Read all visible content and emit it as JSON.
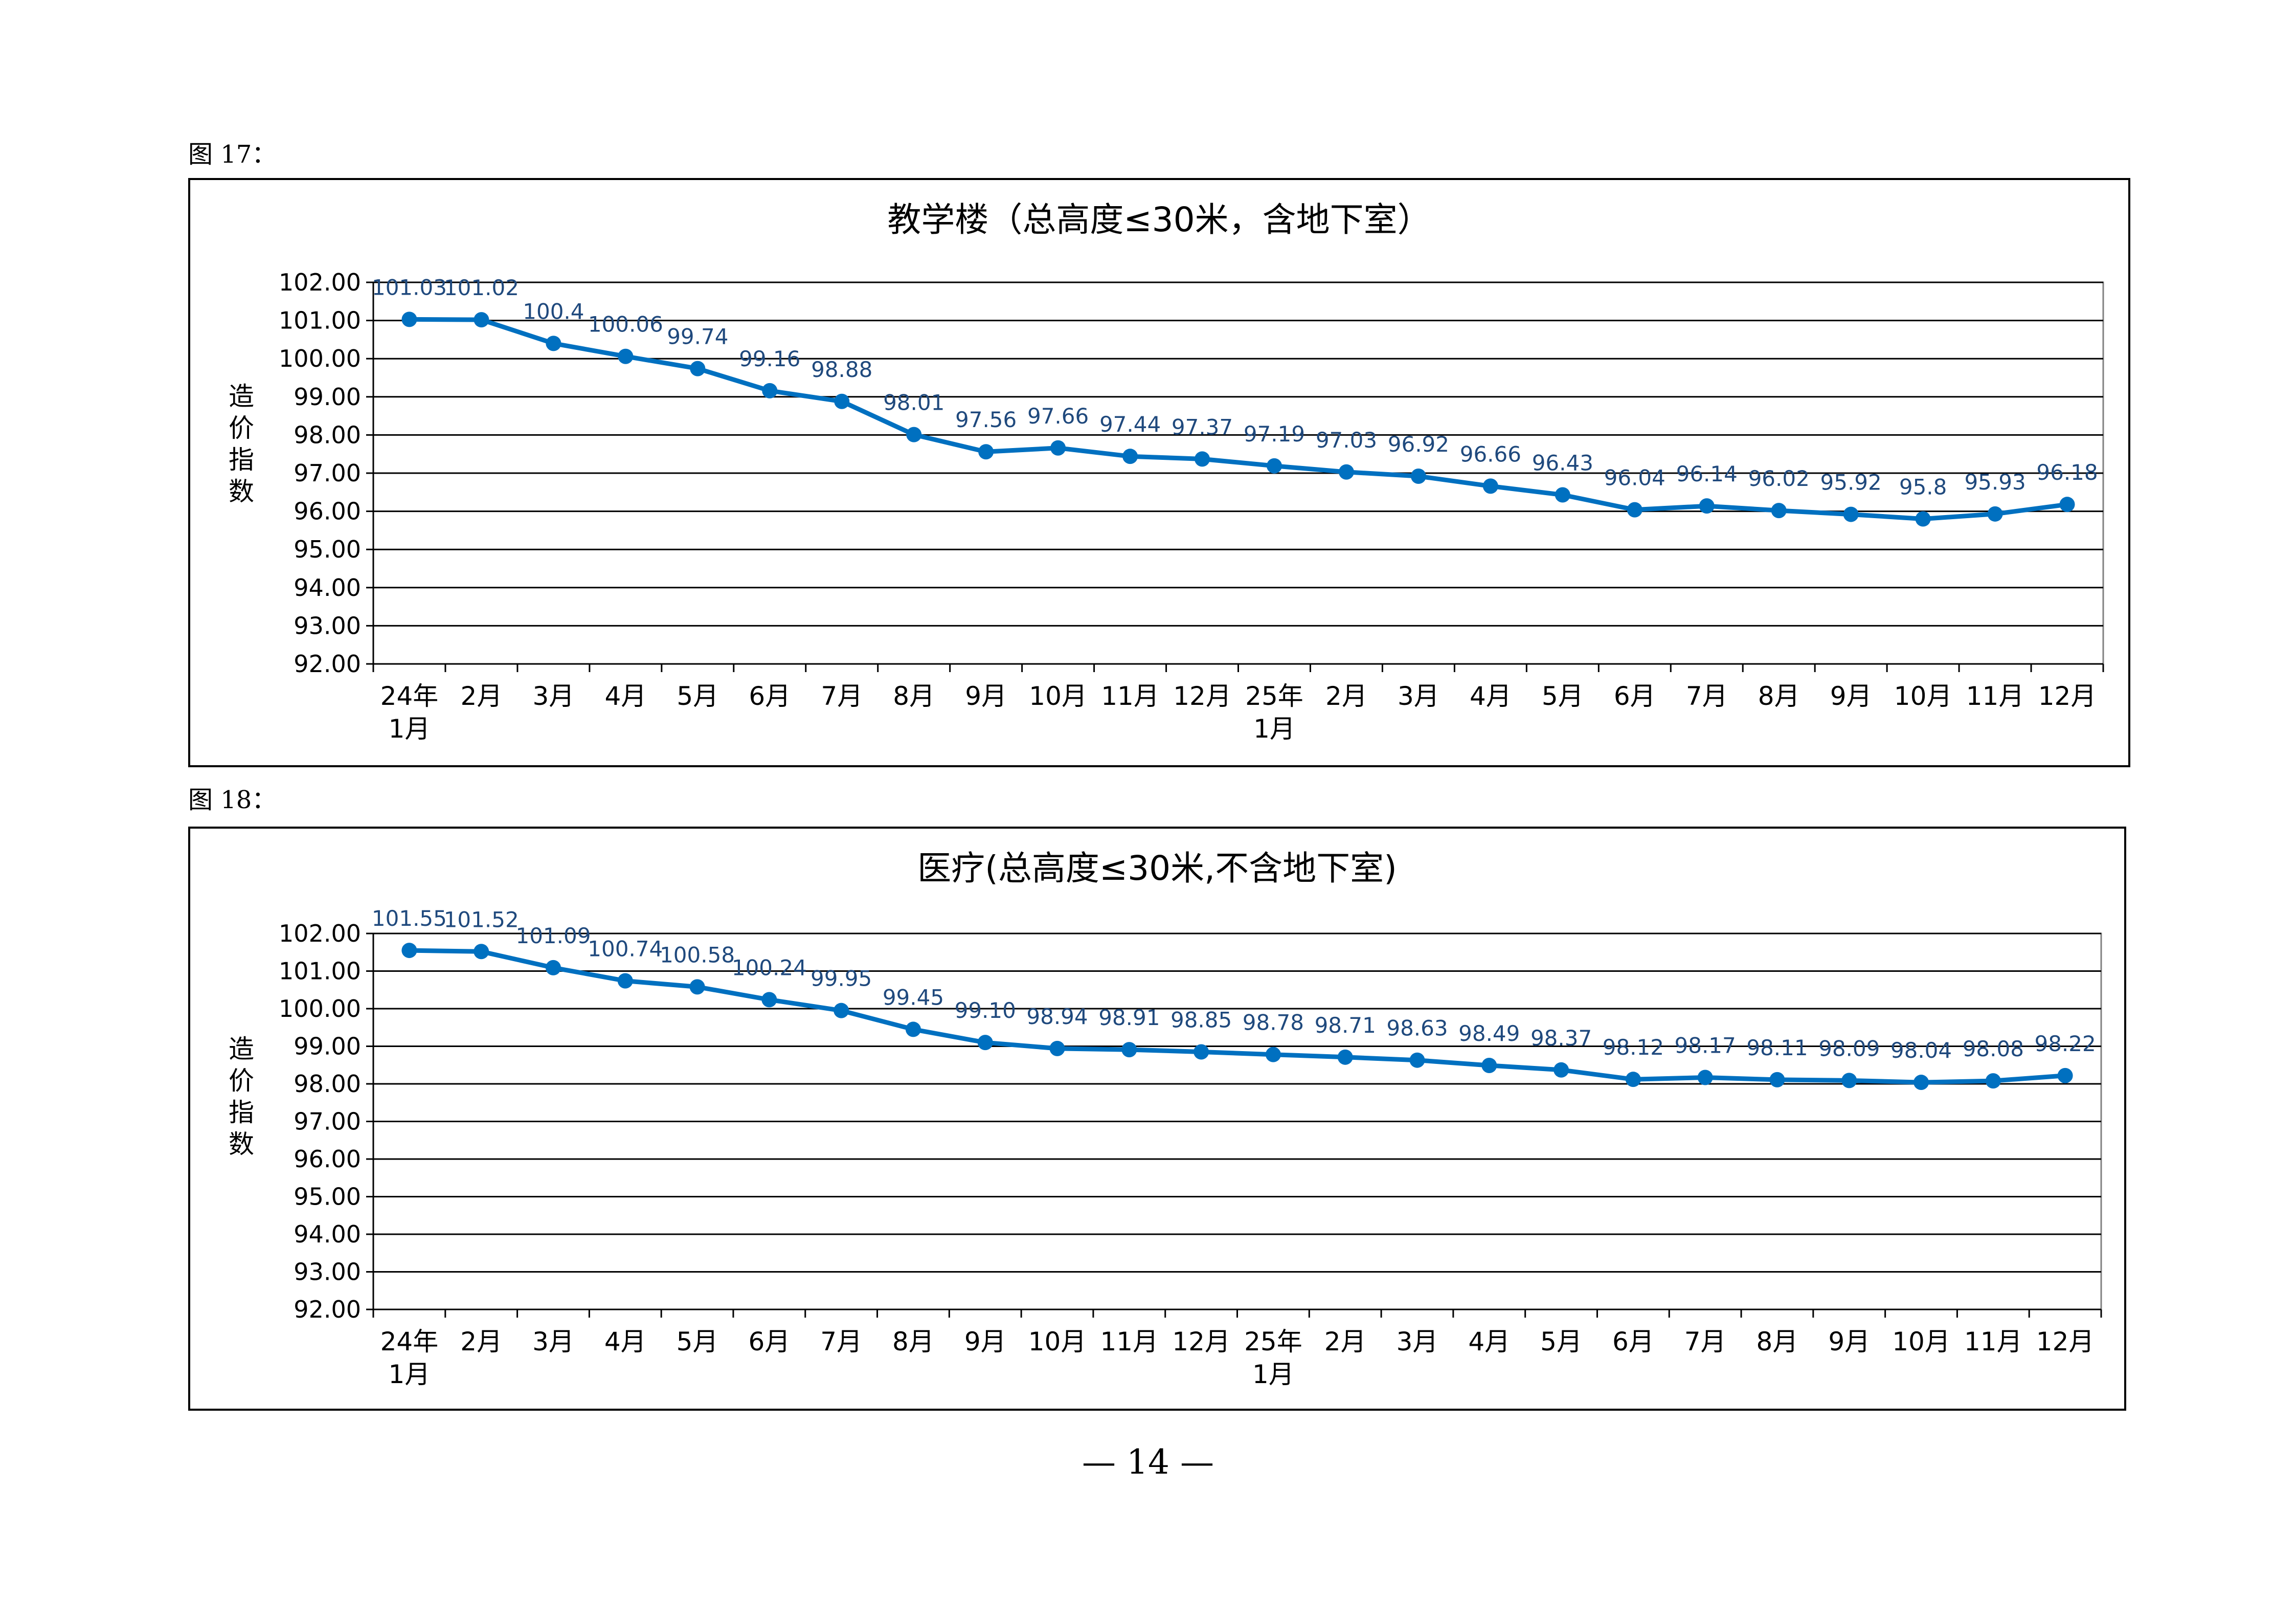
{
  "page": {
    "page_number": "— 14 —"
  },
  "figures": [
    {
      "label": "图 17："
    },
    {
      "label": "图 18："
    }
  ],
  "colors": {
    "line": "#0070C0",
    "data_label": "#1F497D",
    "grid": "#000000"
  },
  "chart_data": [
    {
      "type": "line",
      "title": "教学楼（总高度≤30米，含地下室）",
      "ylabel": "造价指数",
      "xlabel": "",
      "ylim": [
        92,
        102
      ],
      "yticks": [
        "102.00",
        "101.00",
        "100.00",
        "99.00",
        "98.00",
        "97.00",
        "96.00",
        "95.00",
        "94.00",
        "93.00",
        "92.00"
      ],
      "categories": [
        "24年1月",
        "2月",
        "3月",
        "4月",
        "5月",
        "6月",
        "7月",
        "8月",
        "9月",
        "10月",
        "11月",
        "12月",
        "25年1月",
        "2月",
        "3月",
        "4月",
        "5月",
        "6月",
        "7月",
        "8月",
        "9月",
        "10月",
        "11月",
        "12月"
      ],
      "category_lines": [
        [
          "24年",
          "1月"
        ],
        [
          "2月"
        ],
        [
          "3月"
        ],
        [
          "4月"
        ],
        [
          "5月"
        ],
        [
          "6月"
        ],
        [
          "7月"
        ],
        [
          "8月"
        ],
        [
          "9月"
        ],
        [
          "10月"
        ],
        [
          "11月"
        ],
        [
          "12月"
        ],
        [
          "25年",
          "1月"
        ],
        [
          "2月"
        ],
        [
          "3月"
        ],
        [
          "4月"
        ],
        [
          "5月"
        ],
        [
          "6月"
        ],
        [
          "7月"
        ],
        [
          "8月"
        ],
        [
          "9月"
        ],
        [
          "10月"
        ],
        [
          "11月"
        ],
        [
          "12月"
        ]
      ],
      "values": [
        101.03,
        101.02,
        100.4,
        100.06,
        99.74,
        99.16,
        98.88,
        98.01,
        97.56,
        97.66,
        97.44,
        97.37,
        97.19,
        97.03,
        96.92,
        96.66,
        96.43,
        96.04,
        96.14,
        96.02,
        95.92,
        95.8,
        95.93,
        96.18
      ],
      "data_labels": [
        "101.03",
        "101.02",
        "100.4",
        "100.06",
        "99.74",
        "99.16",
        "98.88",
        "98.01",
        "97.56",
        "97.66",
        "97.44",
        "97.37",
        "97.19",
        "97.03",
        "96.92",
        "96.66",
        "96.43",
        "96.04",
        "96.14",
        "96.02",
        "95.92",
        "95.8",
        "95.93",
        "96.18"
      ],
      "grid": true
    },
    {
      "type": "line",
      "title": "医疗(总高度≤30米,不含地下室)",
      "ylabel": "造价指数",
      "xlabel": "",
      "ylim": [
        92,
        102
      ],
      "yticks": [
        "102.00",
        "101.00",
        "100.00",
        "99.00",
        "98.00",
        "97.00",
        "96.00",
        "95.00",
        "94.00",
        "93.00",
        "92.00"
      ],
      "categories": [
        "24年1月",
        "2月",
        "3月",
        "4月",
        "5月",
        "6月",
        "7月",
        "8月",
        "9月",
        "10月",
        "11月",
        "12月",
        "25年1月",
        "2月",
        "3月",
        "4月",
        "5月",
        "6月",
        "7月",
        "8月",
        "9月",
        "10月",
        "11月",
        "12月"
      ],
      "category_lines": [
        [
          "24年",
          "1月"
        ],
        [
          "2月"
        ],
        [
          "3月"
        ],
        [
          "4月"
        ],
        [
          "5月"
        ],
        [
          "6月"
        ],
        [
          "7月"
        ],
        [
          "8月"
        ],
        [
          "9月"
        ],
        [
          "10月"
        ],
        [
          "11月"
        ],
        [
          "12月"
        ],
        [
          "25年",
          "1月"
        ],
        [
          "2月"
        ],
        [
          "3月"
        ],
        [
          "4月"
        ],
        [
          "5月"
        ],
        [
          "6月"
        ],
        [
          "7月"
        ],
        [
          "8月"
        ],
        [
          "9月"
        ],
        [
          "10月"
        ],
        [
          "11月"
        ],
        [
          "12月"
        ]
      ],
      "values": [
        101.55,
        101.52,
        101.09,
        100.74,
        100.58,
        100.24,
        99.95,
        99.45,
        99.1,
        98.94,
        98.91,
        98.85,
        98.78,
        98.71,
        98.63,
        98.49,
        98.37,
        98.12,
        98.17,
        98.11,
        98.09,
        98.04,
        98.08,
        98.22
      ],
      "data_labels": [
        "101.55",
        "101.52",
        "101.09",
        "100.74",
        "100.58",
        "100.24",
        "99.95",
        "99.45",
        "99.10",
        "98.94",
        "98.91",
        "98.85",
        "98.78",
        "98.71",
        "98.63",
        "98.49",
        "98.37",
        "98.12",
        "98.17",
        "98.11",
        "98.09",
        "98.04",
        "98.08",
        "98.22"
      ],
      "grid": true
    }
  ]
}
